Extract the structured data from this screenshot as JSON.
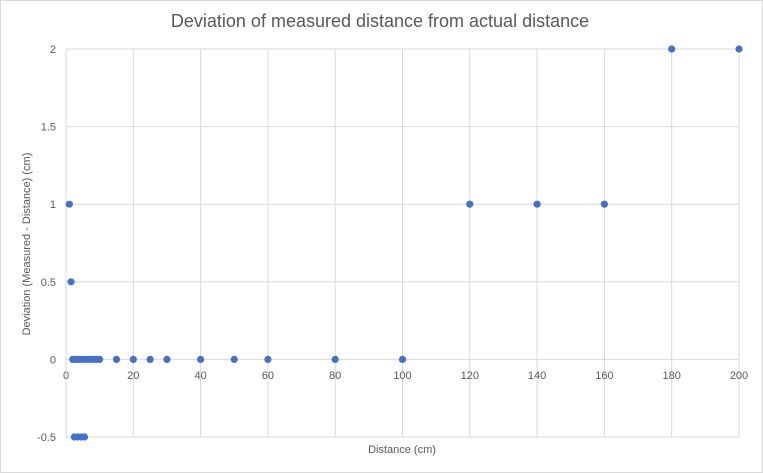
{
  "chart_data": {
    "type": "scatter",
    "title": "Deviation of measured distance from actual distance",
    "xlabel": "Distance (cm)",
    "ylabel": "Deviation (Measured - Distance) (cm)",
    "xlim": [
      0,
      200
    ],
    "ylim": [
      -0.5,
      2
    ],
    "xticks": [
      0,
      20,
      40,
      60,
      80,
      100,
      120,
      140,
      160,
      180,
      200
    ],
    "yticks": [
      -0.5,
      0,
      0.5,
      1,
      1.5,
      2
    ],
    "ytick_labels": [
      "-0.5",
      "0",
      "0.5",
      "1",
      "1.5",
      "2"
    ],
    "grid": true,
    "legend": "none",
    "color": "#4472c4",
    "points": [
      {
        "x": 1,
        "y": 1
      },
      {
        "x": 1.5,
        "y": 0.5
      },
      {
        "x": 2,
        "y": 0
      },
      {
        "x": 2.5,
        "y": -0.5
      },
      {
        "x": 3,
        "y": 0
      },
      {
        "x": 3.5,
        "y": -0.5
      },
      {
        "x": 4,
        "y": 0
      },
      {
        "x": 4.5,
        "y": -0.5
      },
      {
        "x": 5,
        "y": 0
      },
      {
        "x": 5.5,
        "y": -0.5
      },
      {
        "x": 6,
        "y": 0
      },
      {
        "x": 7,
        "y": 0
      },
      {
        "x": 8,
        "y": 0
      },
      {
        "x": 9,
        "y": 0
      },
      {
        "x": 10,
        "y": 0
      },
      {
        "x": 15,
        "y": 0
      },
      {
        "x": 20,
        "y": 0
      },
      {
        "x": 25,
        "y": 0
      },
      {
        "x": 30,
        "y": 0
      },
      {
        "x": 40,
        "y": 0
      },
      {
        "x": 50,
        "y": 0
      },
      {
        "x": 60,
        "y": 0
      },
      {
        "x": 80,
        "y": 0
      },
      {
        "x": 100,
        "y": 0
      },
      {
        "x": 120,
        "y": 1
      },
      {
        "x": 140,
        "y": 1
      },
      {
        "x": 160,
        "y": 1
      },
      {
        "x": 180,
        "y": 2
      },
      {
        "x": 200,
        "y": 2
      }
    ]
  }
}
